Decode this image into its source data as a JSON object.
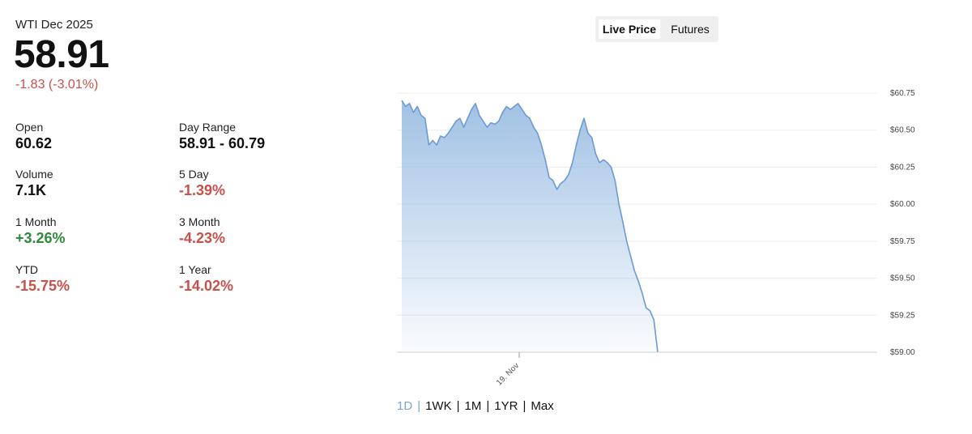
{
  "quote": {
    "title": "WTI Dec 2025",
    "price": "58.91",
    "change": "-1.83 (-3.01%)"
  },
  "stats": [
    {
      "label": "Open",
      "value": "60.62",
      "tone": "neutral"
    },
    {
      "label": "Day Range",
      "value": "58.91 - 60.79",
      "tone": "neutral"
    },
    {
      "label": "Volume",
      "value": "7.1K",
      "tone": "neutral"
    },
    {
      "label": "5 Day",
      "value": "-1.39%",
      "tone": "neg"
    },
    {
      "label": "1 Month",
      "value": "+3.26%",
      "tone": "pos"
    },
    {
      "label": "3 Month",
      "value": "-4.23%",
      "tone": "neg"
    },
    {
      "label": "YTD",
      "value": "-15.75%",
      "tone": "neg"
    },
    {
      "label": "1 Year",
      "value": "-14.02%",
      "tone": "neg"
    }
  ],
  "toggle": {
    "live_price": "Live Price",
    "futures": "Futures",
    "selected": "Live Price"
  },
  "ranges": {
    "items": [
      "1D",
      "1WK",
      "1M",
      "1YR",
      "Max"
    ],
    "selected": "1D"
  },
  "colors": {
    "line": "#6a9ad8",
    "fill_top": "#9cbee2",
    "negative": "#c9504a",
    "positive": "#2e8b3a",
    "range_active": "#7ba4cf"
  },
  "chart_data": {
    "type": "area",
    "ylim": [
      59.0,
      60.75
    ],
    "y_ticks": [
      "$60.75",
      "$60.50",
      "$60.25",
      "$60.00",
      "$59.75",
      "$59.50",
      "$59.25",
      "$59.00"
    ],
    "x_tick_label": "19. Nov",
    "series": [
      {
        "values": [
          60.7,
          60.66,
          60.68,
          60.62,
          60.66,
          60.6,
          60.58,
          60.4,
          60.43,
          60.4,
          60.46,
          60.45,
          60.48,
          60.52,
          60.56,
          60.58,
          60.52,
          60.58,
          60.64,
          60.68,
          60.6,
          60.56,
          60.52,
          60.55,
          60.54,
          60.56,
          60.62,
          60.66,
          60.64,
          60.66,
          60.68,
          60.64,
          60.6,
          60.58,
          60.52,
          60.48,
          60.4,
          60.3,
          60.18,
          60.16,
          60.1,
          60.14,
          60.16,
          60.2,
          60.28,
          60.4,
          60.5,
          60.58,
          60.48,
          60.45,
          60.34,
          60.28,
          60.3,
          60.28,
          60.25,
          60.16,
          60.0,
          59.88,
          59.75,
          59.65,
          59.55,
          59.48,
          59.4,
          59.3,
          59.28,
          59.22,
          59.0
        ]
      }
    ]
  }
}
